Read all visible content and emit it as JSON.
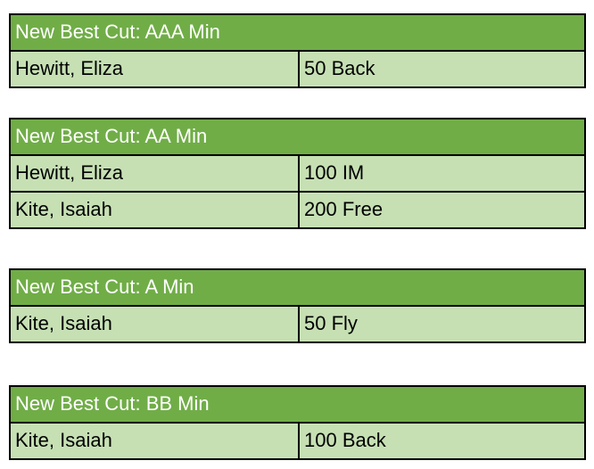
{
  "colors": {
    "header_bg": "#70AD47",
    "header_text": "#FFFFFF",
    "row_bg": "#C6E0B4",
    "row_text": "#000000",
    "border": "#000000",
    "page_bg": "#FFFFFF"
  },
  "tables": [
    {
      "title": "New Best Cut: AAA Min",
      "rows": [
        {
          "name": "Hewitt, Eliza",
          "event": "50 Back"
        }
      ]
    },
    {
      "title": "New Best Cut: AA Min",
      "rows": [
        {
          "name": "Hewitt, Eliza",
          "event": "100 IM"
        },
        {
          "name": "Kite, Isaiah",
          "event": "200 Free"
        }
      ]
    },
    {
      "title": "New Best Cut: A Min",
      "rows": [
        {
          "name": "Kite, Isaiah",
          "event": "50 Fly"
        }
      ]
    },
    {
      "title": "New Best Cut: BB Min",
      "rows": [
        {
          "name": "Kite, Isaiah",
          "event": "100 Back"
        }
      ]
    }
  ]
}
